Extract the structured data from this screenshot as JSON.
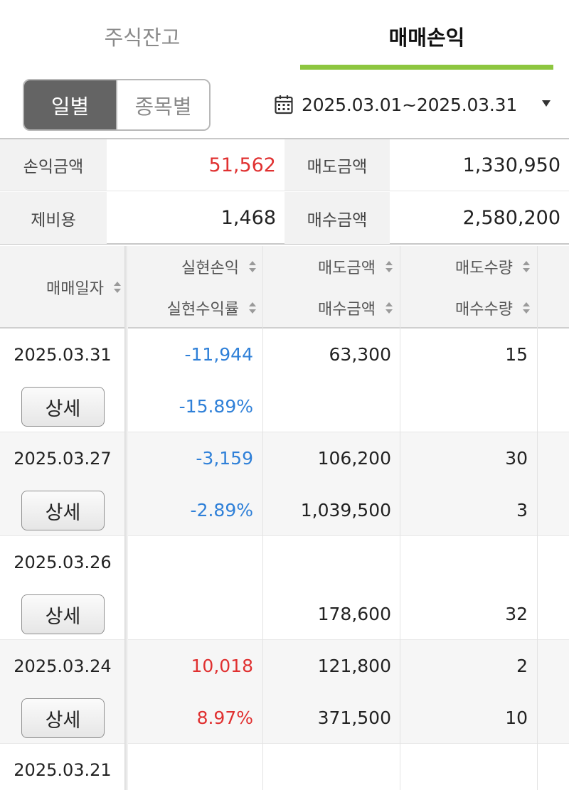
{
  "tabs": [
    {
      "label": "주식잔고",
      "active": false
    },
    {
      "label": "매매손익",
      "active": true
    }
  ],
  "accent_color": "#8dc63f",
  "segment": {
    "daily": "일별",
    "by_stock": "종목별",
    "selected": "일별"
  },
  "date_range": {
    "text": "2025.03.01~2025.03.31",
    "icon": "calendar-icon"
  },
  "summary": {
    "profit_label": "손익금액",
    "profit_value": "51,562",
    "sell_label": "매도금액",
    "sell_value": "1,330,950",
    "fee_label": "제비용",
    "fee_value": "1,468",
    "buy_label": "매수금액",
    "buy_value": "2,580,200"
  },
  "table": {
    "headers": {
      "date": "매매일자",
      "realized_pl": "실현손익",
      "realized_rate": "실현수익률",
      "sell_amount": "매도금액",
      "buy_amount": "매수금액",
      "sell_qty": "매도수량",
      "buy_qty": "매수수량"
    },
    "detail_label": "상세",
    "rows": [
      {
        "date": "2025.03.31",
        "pl": "-11,944",
        "rate": "-15.89%",
        "sell_amt": "63,300",
        "buy_amt": "",
        "sell_qty": "15",
        "buy_qty": ""
      },
      {
        "date": "2025.03.27",
        "pl": "-3,159",
        "rate": "-2.89%",
        "sell_amt": "106,200",
        "buy_amt": "1,039,500",
        "sell_qty": "30",
        "buy_qty": "3"
      },
      {
        "date": "2025.03.26",
        "pl": "",
        "rate": "",
        "sell_amt": "",
        "buy_amt": "178,600",
        "sell_qty": "",
        "buy_qty": "32"
      },
      {
        "date": "2025.03.24",
        "pl": "10,018",
        "rate": "8.97%",
        "sell_amt": "121,800",
        "buy_amt": "371,500",
        "sell_qty": "2",
        "buy_qty": "10"
      },
      {
        "date": "2025.03.21",
        "pl": "",
        "rate": "",
        "sell_amt": "",
        "buy_amt": "",
        "sell_qty": "",
        "buy_qty": ""
      }
    ]
  }
}
